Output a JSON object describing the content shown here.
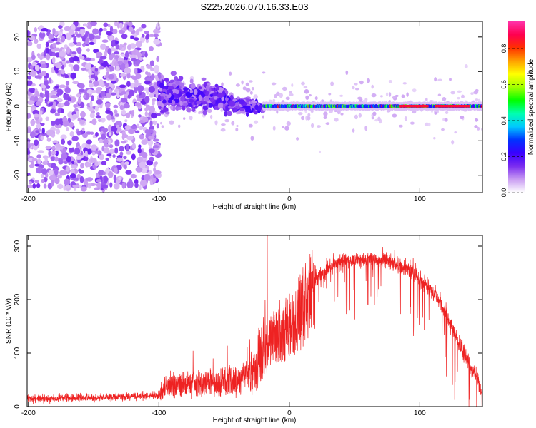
{
  "title": "S225.2026.070.16.33.E03",
  "chart_data": [
    {
      "type": "heatmap",
      "title": "S225.2026.070.16.33.E03",
      "xlabel": "Height of straight line (km)",
      "ylabel": "Frequency (Hz)",
      "xlim": [
        -201,
        148
      ],
      "ylim": [
        -25,
        24.5
      ],
      "xticks": [
        "-200",
        "-100",
        "0",
        "100"
      ],
      "xtick_values": [
        -200,
        -100,
        0,
        100
      ],
      "yticks": [
        "20",
        "10",
        "0",
        "-10",
        "-20"
      ],
      "ytick_values": [
        20,
        10,
        0,
        -10,
        -20
      ],
      "colorbar": {
        "label": "Normalized spectral amplitude",
        "range": [
          0,
          0.95
        ],
        "ticks": [
          "0.0",
          "0.2",
          "0.4",
          "0.6",
          "0.8"
        ],
        "tick_values": [
          0.0,
          0.2,
          0.4,
          0.6,
          0.8
        ],
        "colors": [
          "#ffffff",
          "#c99cf2",
          "#7a2cf0",
          "#3a00ff",
          "#0033ff",
          "#00c8ff",
          "#00ffb0",
          "#00ff00",
          "#a0ff00",
          "#ffff00",
          "#ffa000",
          "#ff3000",
          "#ff0050",
          "#ff33aa"
        ]
      },
      "regions": [
        {
          "name": "noise",
          "x_range": [
            -201,
            -100
          ],
          "freq_spread_hz": 24,
          "typical_amplitude": 0.08
        },
        {
          "name": "transition",
          "x_range": [
            -100,
            -20
          ],
          "freq_spread_hz": 8,
          "typical_amplitude": 0.2
        },
        {
          "name": "tone",
          "x_range": [
            -20,
            148
          ],
          "center_freq_hz": 0,
          "typical_amplitude": 0.6
        }
      ]
    },
    {
      "type": "line",
      "xlabel": "Height of straight line (km)",
      "ylabel": "SNR (10 * v/v)",
      "xlim": [
        -201,
        148
      ],
      "ylim": [
        0,
        320
      ],
      "xticks": [
        "-200",
        "-100",
        "0",
        "100"
      ],
      "xtick_values": [
        -200,
        -100,
        0,
        100
      ],
      "yticks": [
        "0",
        "100",
        "200",
        "300"
      ],
      "ytick_values": [
        0,
        100,
        200,
        300
      ],
      "series": [
        {
          "name": "SNR",
          "color": "#ee2222",
          "envelope": {
            "x": [
              -201,
              -180,
              -150,
              -120,
              -100,
              -95,
              -80,
              -60,
              -40,
              -25,
              -20,
              -15,
              -5,
              0,
              10,
              20,
              30,
              40,
              50,
              60,
              70,
              80,
              90,
              100,
              110,
              120,
              130,
              140,
              148
            ],
            "y": [
              15,
              15,
              17,
              19,
              20,
              40,
              40,
              45,
              50,
              70,
              110,
              130,
              150,
              160,
              200,
              235,
              260,
              270,
              275,
              278,
              275,
              268,
              258,
              240,
              215,
              175,
              120,
              70,
              25
            ]
          },
          "annotation": {
            "x": -17,
            "y": 325,
            "label": "spike"
          }
        }
      ]
    }
  ]
}
